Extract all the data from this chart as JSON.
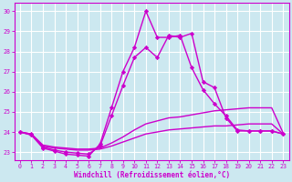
{
  "xlabel": "Windchill (Refroidissement éolien,°C)",
  "background_color": "#cce8f0",
  "line_color": "#cc00cc",
  "grid_color": "#ffffff",
  "ylim": [
    22.6,
    30.4
  ],
  "xlim": [
    -0.5,
    23.5
  ],
  "yticks": [
    23,
    24,
    25,
    26,
    27,
    28,
    29,
    30
  ],
  "xticks": [
    0,
    1,
    2,
    3,
    4,
    5,
    6,
    7,
    8,
    9,
    10,
    11,
    12,
    13,
    14,
    15,
    16,
    17,
    18,
    19,
    20,
    21,
    22,
    23
  ],
  "lines": [
    {
      "x": [
        0,
        1,
        2,
        3,
        4,
        5,
        6,
        7,
        8,
        9,
        10,
        11,
        12,
        13,
        14,
        15,
        16,
        17,
        18,
        19,
        20,
        21,
        22,
        23
      ],
      "y": [
        24.0,
        23.85,
        23.3,
        23.2,
        23.15,
        23.1,
        23.1,
        23.15,
        23.3,
        23.5,
        23.7,
        23.9,
        24.0,
        24.1,
        24.15,
        24.2,
        24.25,
        24.3,
        24.3,
        24.35,
        24.4,
        24.4,
        24.4,
        23.9
      ],
      "marker": null,
      "linestyle": "-",
      "linewidth": 1.0
    },
    {
      "x": [
        0,
        1,
        2,
        3,
        4,
        5,
        6,
        7,
        8,
        9,
        10,
        11,
        12,
        13,
        14,
        15,
        16,
        17,
        18,
        19,
        20,
        21,
        22,
        23
      ],
      "y": [
        24.0,
        23.9,
        23.35,
        23.25,
        23.2,
        23.15,
        23.15,
        23.2,
        23.45,
        23.75,
        24.1,
        24.4,
        24.55,
        24.7,
        24.75,
        24.85,
        24.95,
        25.05,
        25.1,
        25.15,
        25.2,
        25.2,
        25.2,
        23.95
      ],
      "marker": null,
      "linestyle": "-",
      "linewidth": 1.0
    },
    {
      "x": [
        0,
        1,
        2,
        3,
        4,
        5,
        6,
        7,
        8,
        9,
        10,
        11,
        12,
        13,
        14,
        15,
        16,
        17,
        18,
        19,
        20,
        21,
        22,
        23
      ],
      "y": [
        24.0,
        23.85,
        23.2,
        23.05,
        22.9,
        22.85,
        22.8,
        23.4,
        25.2,
        27.0,
        28.2,
        30.0,
        28.7,
        28.7,
        28.8,
        27.2,
        26.1,
        25.4,
        24.8,
        24.1,
        24.05,
        24.05,
        24.05,
        23.9
      ],
      "marker": "D",
      "linestyle": "-",
      "linewidth": 1.0
    },
    {
      "x": [
        0,
        1,
        2,
        3,
        4,
        5,
        6,
        7,
        8,
        9,
        10,
        11,
        12,
        13,
        14,
        15,
        16,
        17,
        18,
        19,
        20,
        21,
        22,
        23
      ],
      "y": [
        24.0,
        23.9,
        23.25,
        23.1,
        23.0,
        22.95,
        22.9,
        23.3,
        24.8,
        26.3,
        27.7,
        28.2,
        27.7,
        28.8,
        28.7,
        28.9,
        26.5,
        26.2,
        24.7,
        24.05,
        24.05,
        24.05,
        24.05,
        23.9
      ],
      "marker": "D",
      "linestyle": "-",
      "linewidth": 1.0
    }
  ]
}
